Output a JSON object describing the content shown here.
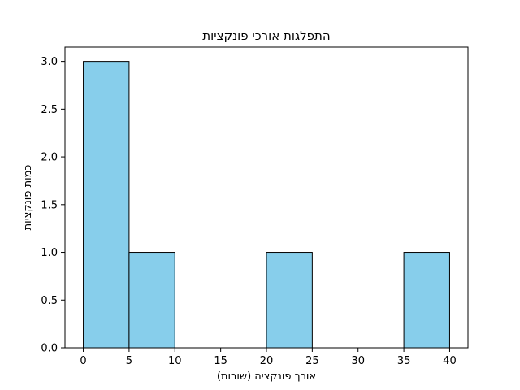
{
  "chart_data": {
    "type": "bar",
    "title": "התפלגות אורכי פונקציות",
    "xlabel": "אורך פונקציה (שורות)",
    "ylabel": "כמות פונקציות",
    "bins": [
      {
        "start": 0,
        "end": 5,
        "count": 3
      },
      {
        "start": 5,
        "end": 10,
        "count": 1
      },
      {
        "start": 10,
        "end": 15,
        "count": 0
      },
      {
        "start": 15,
        "end": 20,
        "count": 0
      },
      {
        "start": 20,
        "end": 25,
        "count": 1
      },
      {
        "start": 25,
        "end": 30,
        "count": 0
      },
      {
        "start": 30,
        "end": 35,
        "count": 0
      },
      {
        "start": 35,
        "end": 40,
        "count": 1
      }
    ],
    "xlim": [
      -2,
      42
    ],
    "ylim": [
      0,
      3.15
    ],
    "xticks": [
      0,
      5,
      10,
      15,
      20,
      25,
      30,
      35,
      40
    ],
    "xtick_labels": [
      "0",
      "5",
      "10",
      "15",
      "20",
      "25",
      "30",
      "35",
      "40"
    ],
    "yticks": [
      0.0,
      0.5,
      1.0,
      1.5,
      2.0,
      2.5,
      3.0
    ],
    "ytick_labels": [
      "0.0",
      "0.5",
      "1.0",
      "1.5",
      "2.0",
      "2.5",
      "3.0"
    ],
    "bar_color": "#87CEEB",
    "edge_color": "#000000",
    "grid": false,
    "legend": null
  }
}
